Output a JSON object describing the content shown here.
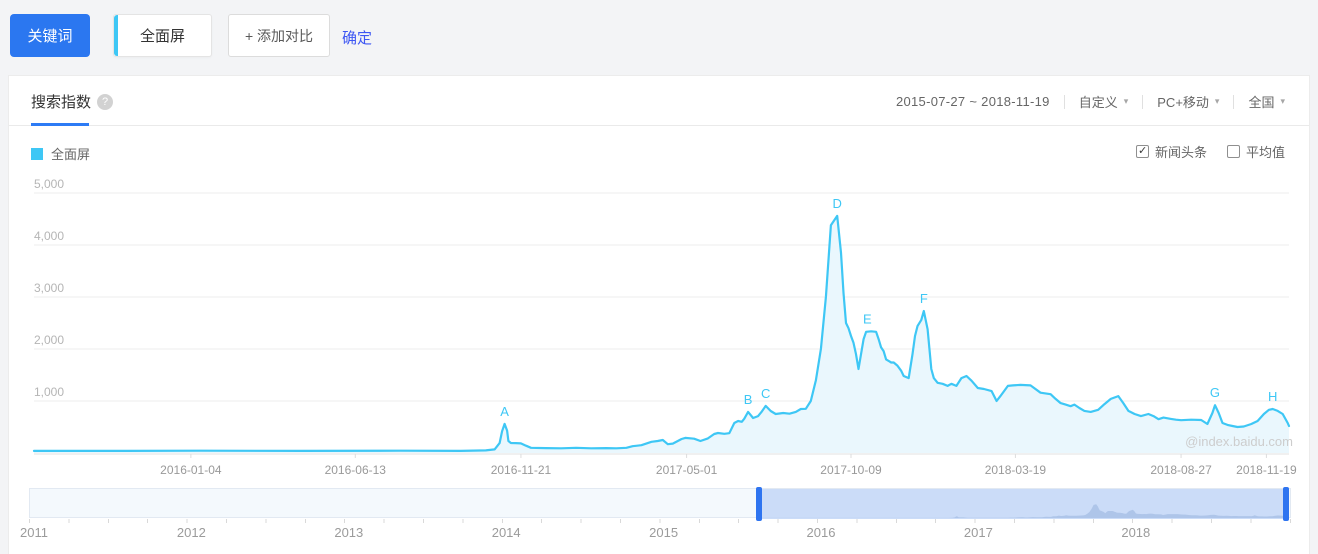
{
  "toolbar": {
    "keyword_button": "关键词",
    "keyword_tab": "全面屏",
    "add_compare_button": "+ 添加对比",
    "confirm_link": "确定"
  },
  "panel": {
    "tab": "搜索指数",
    "help_icon": "?",
    "date_range": "2015-07-27 ~ 2018-11-19",
    "range_type": "自定义",
    "device": "PC+移动",
    "region": "全国",
    "caret": "▾"
  },
  "legend": {
    "series_label": "全面屏",
    "series_color": "#3EC7F5",
    "checkboxes": [
      {
        "label": "新闻头条",
        "checked": true
      },
      {
        "label": "平均值",
        "checked": false
      }
    ]
  },
  "watermark": "@index.baidu.com",
  "chart_data": {
    "type": "area",
    "series_name": "全面屏",
    "x_range": [
      "2015-07-27",
      "2018-11-19"
    ],
    "ylim": [
      0,
      5000
    ],
    "grid": true,
    "line_color": "#3EC7F5",
    "fill_color": "#EAF7FD",
    "y_ticks": [
      {
        "v": 1000,
        "label": "1,000"
      },
      {
        "v": 2000,
        "label": "2,000"
      },
      {
        "v": 3000,
        "label": "3,000"
      },
      {
        "v": 4000,
        "label": "4,000"
      },
      {
        "v": 5000,
        "label": "5,000"
      }
    ],
    "x_ticks": [
      {
        "t": 0.125,
        "label": "2016-01-04"
      },
      {
        "t": 0.256,
        "label": "2016-06-13"
      },
      {
        "t": 0.388,
        "label": "2016-11-21"
      },
      {
        "t": 0.52,
        "label": "2017-05-01"
      },
      {
        "t": 0.651,
        "label": "2017-10-09"
      },
      {
        "t": 0.782,
        "label": "2018-03-19"
      },
      {
        "t": 0.914,
        "label": "2018-08-27"
      },
      {
        "t": 0.982,
        "label": "2018-11-19"
      }
    ],
    "annotations": [
      {
        "label": "A",
        "t": 0.375,
        "v": 560
      },
      {
        "label": "B",
        "t": 0.569,
        "v": 790
      },
      {
        "label": "C",
        "t": 0.583,
        "v": 905
      },
      {
        "label": "D",
        "t": 0.64,
        "v": 4560
      },
      {
        "label": "E",
        "t": 0.664,
        "v": 2340
      },
      {
        "label": "F",
        "t": 0.709,
        "v": 2730
      },
      {
        "label": "G",
        "t": 0.941,
        "v": 920
      },
      {
        "label": "H",
        "t": 0.987,
        "v": 846
      }
    ],
    "points": [
      [
        0.0,
        40
      ],
      [
        0.053,
        40
      ],
      [
        0.133,
        45
      ],
      [
        0.213,
        40
      ],
      [
        0.292,
        45
      ],
      [
        0.34,
        40
      ],
      [
        0.36,
        50
      ],
      [
        0.367,
        70
      ],
      [
        0.371,
        190
      ],
      [
        0.373,
        420
      ],
      [
        0.375,
        560
      ],
      [
        0.377,
        430
      ],
      [
        0.378,
        230
      ],
      [
        0.38,
        192
      ],
      [
        0.384,
        190
      ],
      [
        0.388,
        185
      ],
      [
        0.392,
        140
      ],
      [
        0.396,
        100
      ],
      [
        0.408,
        95
      ],
      [
        0.42,
        90
      ],
      [
        0.432,
        100
      ],
      [
        0.444,
        90
      ],
      [
        0.456,
        95
      ],
      [
        0.464,
        90
      ],
      [
        0.472,
        100
      ],
      [
        0.477,
        130
      ],
      [
        0.484,
        150
      ],
      [
        0.492,
        215
      ],
      [
        0.497,
        230
      ],
      [
        0.501,
        250
      ],
      [
        0.505,
        170
      ],
      [
        0.509,
        180
      ],
      [
        0.516,
        270
      ],
      [
        0.519,
        290
      ],
      [
        0.526,
        275
      ],
      [
        0.531,
        230
      ],
      [
        0.537,
        280
      ],
      [
        0.542,
        365
      ],
      [
        0.545,
        385
      ],
      [
        0.55,
        370
      ],
      [
        0.554,
        380
      ],
      [
        0.558,
        577
      ],
      [
        0.561,
        615
      ],
      [
        0.564,
        600
      ],
      [
        0.566,
        660
      ],
      [
        0.569,
        790
      ],
      [
        0.573,
        673
      ],
      [
        0.577,
        710
      ],
      [
        0.58,
        800
      ],
      [
        0.583,
        905
      ],
      [
        0.587,
        808
      ],
      [
        0.591,
        750
      ],
      [
        0.597,
        770
      ],
      [
        0.602,
        755
      ],
      [
        0.607,
        790
      ],
      [
        0.611,
        846
      ],
      [
        0.615,
        850
      ],
      [
        0.619,
        1000
      ],
      [
        0.623,
        1400
      ],
      [
        0.627,
        2000
      ],
      [
        0.631,
        3000
      ],
      [
        0.635,
        4380
      ],
      [
        0.64,
        4560
      ],
      [
        0.643,
        3850
      ],
      [
        0.645,
        3080
      ],
      [
        0.647,
        2500
      ],
      [
        0.649,
        2400
      ],
      [
        0.651,
        2250
      ],
      [
        0.653,
        2120
      ],
      [
        0.655,
        1900
      ],
      [
        0.657,
        1615
      ],
      [
        0.661,
        2190
      ],
      [
        0.663,
        2330
      ],
      [
        0.667,
        2340
      ],
      [
        0.671,
        2330
      ],
      [
        0.673,
        2190
      ],
      [
        0.675,
        2030
      ],
      [
        0.677,
        1960
      ],
      [
        0.679,
        1800
      ],
      [
        0.683,
        1740
      ],
      [
        0.685,
        1740
      ],
      [
        0.688,
        1680
      ],
      [
        0.691,
        1580
      ],
      [
        0.693,
        1480
      ],
      [
        0.697,
        1440
      ],
      [
        0.7,
        1900
      ],
      [
        0.702,
        2250
      ],
      [
        0.704,
        2440
      ],
      [
        0.707,
        2560
      ],
      [
        0.709,
        2730
      ],
      [
        0.712,
        2380
      ],
      [
        0.714,
        1865
      ],
      [
        0.715,
        1615
      ],
      [
        0.717,
        1440
      ],
      [
        0.72,
        1350
      ],
      [
        0.724,
        1330
      ],
      [
        0.728,
        1290
      ],
      [
        0.731,
        1330
      ],
      [
        0.735,
        1290
      ],
      [
        0.739,
        1440
      ],
      [
        0.743,
        1480
      ],
      [
        0.747,
        1390
      ],
      [
        0.752,
        1250
      ],
      [
        0.757,
        1230
      ],
      [
        0.763,
        1190
      ],
      [
        0.767,
        1000
      ],
      [
        0.77,
        1095
      ],
      [
        0.776,
        1290
      ],
      [
        0.78,
        1300
      ],
      [
        0.786,
        1310
      ],
      [
        0.794,
        1300
      ],
      [
        0.802,
        1160
      ],
      [
        0.81,
        1130
      ],
      [
        0.814,
        1040
      ],
      [
        0.818,
        960
      ],
      [
        0.822,
        930
      ],
      [
        0.826,
        900
      ],
      [
        0.829,
        930
      ],
      [
        0.833,
        865
      ],
      [
        0.837,
        810
      ],
      [
        0.842,
        790
      ],
      [
        0.848,
        830
      ],
      [
        0.853,
        940
      ],
      [
        0.858,
        1040
      ],
      [
        0.864,
        1095
      ],
      [
        0.868,
        960
      ],
      [
        0.872,
        810
      ],
      [
        0.877,
        750
      ],
      [
        0.882,
        710
      ],
      [
        0.888,
        750
      ],
      [
        0.892,
        710
      ],
      [
        0.896,
        650
      ],
      [
        0.9,
        680
      ],
      [
        0.906,
        655
      ],
      [
        0.91,
        640
      ],
      [
        0.914,
        630
      ],
      [
        0.922,
        640
      ],
      [
        0.93,
        635
      ],
      [
        0.935,
        558
      ],
      [
        0.939,
        770
      ],
      [
        0.941,
        920
      ],
      [
        0.944,
        770
      ],
      [
        0.947,
        577
      ],
      [
        0.951,
        540
      ],
      [
        0.955,
        520
      ],
      [
        0.959,
        500
      ],
      [
        0.964,
        510
      ],
      [
        0.97,
        558
      ],
      [
        0.975,
        615
      ],
      [
        0.98,
        750
      ],
      [
        0.984,
        830
      ],
      [
        0.987,
        846
      ],
      [
        0.991,
        809
      ],
      [
        0.995,
        750
      ],
      [
        0.999,
        577
      ],
      [
        1.0,
        520
      ]
    ]
  },
  "timeline": {
    "years": [
      "2011",
      "2012",
      "2013",
      "2014",
      "2015",
      "2016",
      "2017",
      "2018"
    ],
    "sel_start": 0.578,
    "sel_end": 0.995
  }
}
